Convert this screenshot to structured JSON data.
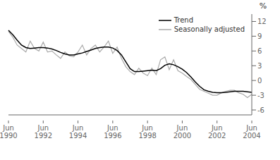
{
  "chart_data": {
    "type": "line",
    "ylabel": "%",
    "categories": [
      "Jun 1990",
      null,
      null,
      null,
      null,
      null,
      null,
      null,
      "Jun 1992",
      null,
      null,
      null,
      null,
      null,
      null,
      null,
      "Jun 1994",
      null,
      null,
      null,
      null,
      null,
      null,
      null,
      "Jun 1996",
      null,
      null,
      null,
      null,
      null,
      null,
      null,
      "Jun 1998",
      null,
      null,
      null,
      null,
      null,
      null,
      null,
      "Jun 2000",
      null,
      null,
      null,
      null,
      null,
      null,
      null,
      "Jun 2002",
      null,
      null,
      null,
      null,
      null,
      null,
      null,
      "Jun 2004"
    ],
    "series": [
      {
        "name": "Trend",
        "color": "#000000",
        "values": [
          10.2,
          9.3,
          8.2,
          7.2,
          6.7,
          6.5,
          6.6,
          6.7,
          6.7,
          6.6,
          6.4,
          6.1,
          5.7,
          5.4,
          5.2,
          5.2,
          5.4,
          5.6,
          5.9,
          6.2,
          6.5,
          6.7,
          6.8,
          6.8,
          6.6,
          6.1,
          5.2,
          3.8,
          2.4,
          1.8,
          1.8,
          1.9,
          2.0,
          2.1,
          2.0,
          2.4,
          3.1,
          3.4,
          3.2,
          2.8,
          2.3,
          1.6,
          0.7,
          -0.3,
          -1.2,
          -1.9,
          -2.2,
          -2.4,
          -2.5,
          -2.5,
          -2.4,
          -2.3,
          -2.2,
          -2.2,
          -2.2,
          -2.3,
          -2.4
        ]
      },
      {
        "name": "Seasonally adjusted",
        "color": "#aaaaaa",
        "values": [
          10.0,
          8.8,
          7.2,
          6.5,
          5.8,
          8.0,
          6.5,
          6.0,
          7.8,
          5.8,
          6.0,
          5.2,
          4.5,
          5.8,
          5.0,
          4.8,
          5.8,
          7.2,
          5.2,
          6.5,
          7.2,
          5.8,
          6.8,
          8.0,
          5.5,
          6.8,
          4.5,
          2.8,
          1.8,
          1.2,
          2.5,
          1.5,
          1.0,
          2.5,
          1.2,
          4.2,
          4.8,
          2.2,
          4.2,
          2.0,
          1.5,
          0.8,
          0.2,
          -0.8,
          -1.8,
          -2.2,
          -2.6,
          -3.0,
          -3.0,
          -2.5,
          -2.2,
          -2.0,
          -2.0,
          -2.5,
          -2.8,
          -3.5,
          -2.8
        ]
      }
    ],
    "ylim": [
      -7,
      13.5
    ],
    "yticks": [
      -6,
      -3,
      0,
      3,
      6,
      9,
      12
    ],
    "grid": false,
    "legend": "upper right"
  }
}
